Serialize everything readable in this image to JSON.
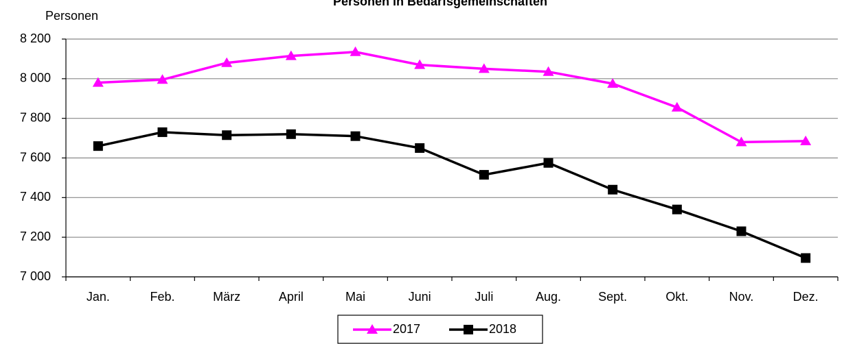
{
  "chart_data": {
    "type": "line",
    "title": "Personen in Bedarfsgemeinschaften",
    "y_label": "Personen",
    "categories": [
      "Jan.",
      "Feb.",
      "März",
      "April",
      "Mai",
      "Juni",
      "Juli",
      "Aug.",
      "Sept.",
      "Okt.",
      "Nov.",
      "Dez."
    ],
    "series": [
      {
        "name": "2017",
        "color": "#ff00ff",
        "marker": "triangle",
        "values": [
          7980,
          7995,
          8080,
          8115,
          8135,
          8070,
          8050,
          8035,
          7975,
          7855,
          7680,
          7685
        ]
      },
      {
        "name": "2018",
        "color": "#000000",
        "marker": "square",
        "values": [
          7660,
          7730,
          7715,
          7720,
          7710,
          7650,
          7515,
          7575,
          7440,
          7340,
          7230,
          7095
        ]
      }
    ],
    "ylim": [
      7000,
      8200
    ],
    "yticks": [
      {
        "value": 7000,
        "label": "7 000"
      },
      {
        "value": 7200,
        "label": "7 200"
      },
      {
        "value": 7400,
        "label": "7 400"
      },
      {
        "value": 7600,
        "label": "7 600"
      },
      {
        "value": 7800,
        "label": "7 800"
      },
      {
        "value": 8000,
        "label": "8 000"
      },
      {
        "value": 8200,
        "label": "8 200"
      }
    ],
    "grid": true,
    "legend": "bottom"
  }
}
